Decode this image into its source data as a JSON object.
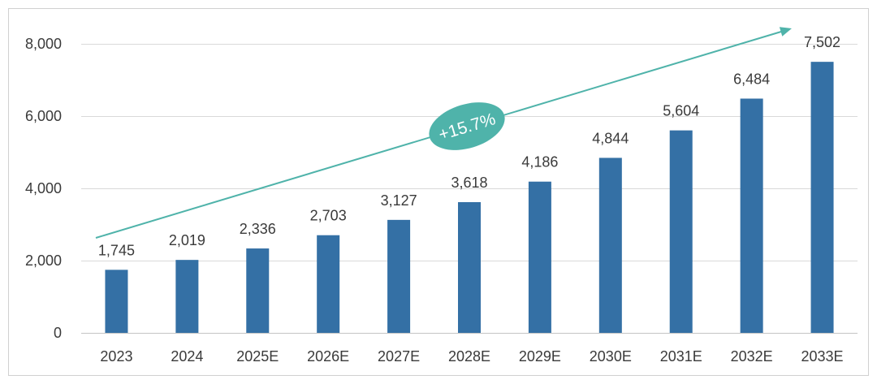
{
  "chart_data": {
    "type": "bar",
    "categories": [
      "2023",
      "2024",
      "2025E",
      "2026E",
      "2027E",
      "2028E",
      "2029E",
      "2030E",
      "2031E",
      "2032E",
      "2033E"
    ],
    "values": [
      1745,
      2019,
      2336,
      2703,
      3127,
      3618,
      4186,
      4844,
      5604,
      6484,
      7502
    ],
    "yticks": [
      0,
      2000,
      4000,
      6000,
      8000
    ],
    "ylim": [
      0,
      8000
    ],
    "grid": true,
    "legend": "none",
    "data_labels": true,
    "annotations": [
      {
        "text": "+15.7%"
      }
    ],
    "colors": {
      "bar": "#3470a5",
      "arrow": "#4fb3aa",
      "badge": "#4fb3aa",
      "badge_text": "#ffffff",
      "text": "#3a3a3a",
      "grid": "#d9d9d9",
      "baseline": "#c4c4c4",
      "border": "#d0d0d0"
    }
  }
}
